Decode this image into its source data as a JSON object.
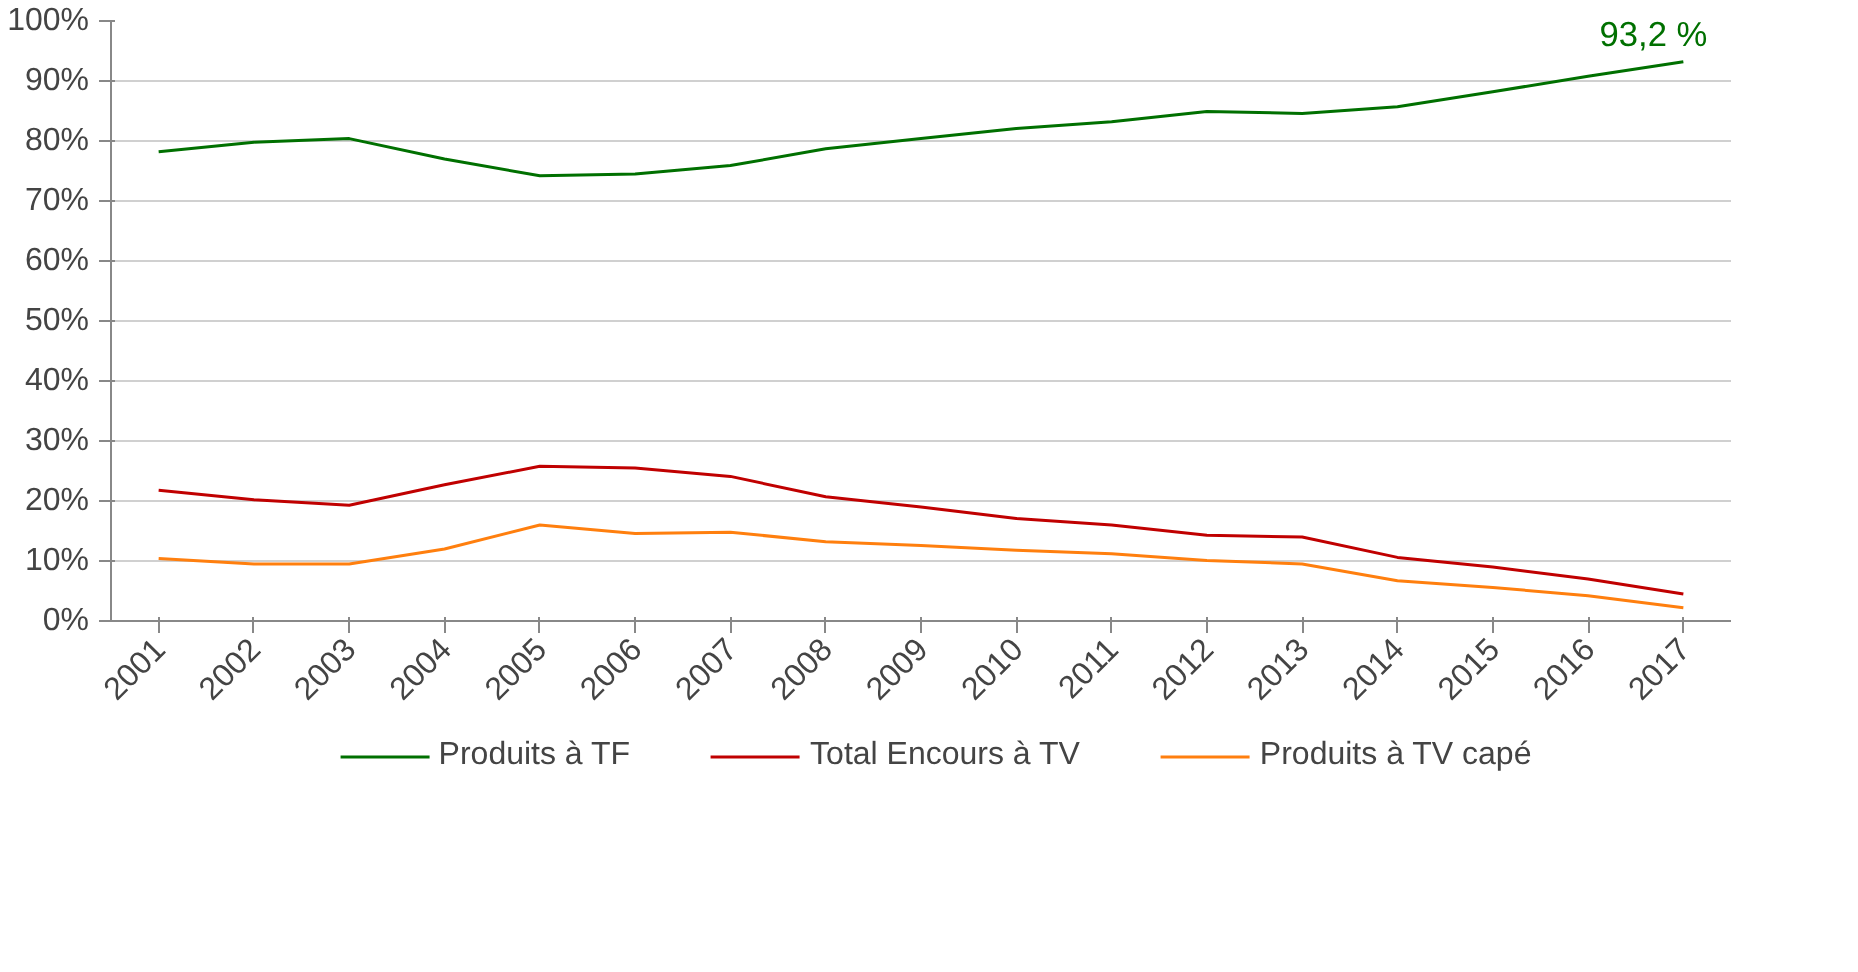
{
  "chart_data": {
    "type": "line",
    "categories": [
      "2001",
      "2002",
      "2003",
      "2004",
      "2005",
      "2006",
      "2007",
      "2008",
      "2009",
      "2010",
      "2011",
      "2012",
      "2013",
      "2014",
      "2015",
      "2016",
      "2017"
    ],
    "series": [
      {
        "name": "Produits à TF",
        "color": "#007000",
        "values": [
          78.2,
          79.8,
          80.4,
          77,
          74.2,
          74.5,
          75.9,
          78.7,
          80.4,
          82.1,
          83.2,
          84.9,
          84.6,
          85.7,
          88.2,
          90.8,
          93.2
        ]
      },
      {
        "name": "Total Encours à TV",
        "color": "#c00000",
        "values": [
          21.8,
          20.2,
          19.3,
          22.7,
          25.8,
          25.5,
          24.1,
          20.7,
          19,
          17.1,
          16,
          14.3,
          14,
          10.6,
          9,
          7,
          4.5
        ]
      },
      {
        "name": "Produits à TV capé",
        "color": "#ff7f0e",
        "values": [
          10.4,
          9.5,
          9.5,
          12,
          16,
          14.6,
          14.8,
          13.2,
          12.6,
          11.8,
          11.2,
          10.1,
          9.5,
          6.7,
          5.6,
          4.2,
          2.2
        ]
      }
    ],
    "annotations": [
      {
        "text": "93,2 %",
        "x": "2017",
        "y": 93.2
      }
    ],
    "ylim": [
      0,
      100
    ],
    "yticks": [
      {
        "value": 0,
        "label": "0%"
      },
      {
        "value": 10,
        "label": "10%"
      },
      {
        "value": 20,
        "label": "20%"
      },
      {
        "value": 30,
        "label": "30%"
      },
      {
        "value": 40,
        "label": "40%"
      },
      {
        "value": 50,
        "label": "50%"
      },
      {
        "value": 60,
        "label": "60%"
      },
      {
        "value": 70,
        "label": "70%"
      },
      {
        "value": 80,
        "label": "80%"
      },
      {
        "value": 90,
        "label": "90%"
      },
      {
        "value": 100,
        "label": "100%"
      }
    ],
    "grid": "y",
    "legend": "bottom",
    "marker": "none",
    "line_style": "solid"
  }
}
